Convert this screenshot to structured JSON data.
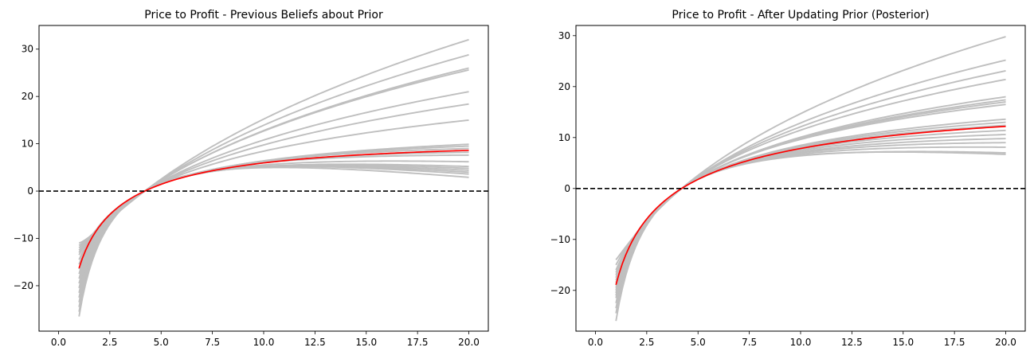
{
  "chart_data": [
    {
      "type": "line",
      "title": "Price to Profit - Previous Beliefs about Prior",
      "xlabel": "",
      "ylabel": "",
      "xlim": [
        -0.95,
        20.95
      ],
      "ylim": [
        -29.6,
        35.0
      ],
      "xticks": [
        0.0,
        2.5,
        5.0,
        7.5,
        10.0,
        12.5,
        15.0,
        17.5,
        20.0
      ],
      "xtick_labels": [
        "0.0",
        "2.5",
        "5.0",
        "7.5",
        "10.0",
        "12.5",
        "15.0",
        "17.5",
        "20.0"
      ],
      "yticks": [
        -20,
        -10,
        0,
        10,
        20,
        30
      ],
      "ytick_labels": [
        "−20",
        "−10",
        "0",
        "10",
        "20",
        "30"
      ],
      "grid": false,
      "reference_line": {
        "y": 0,
        "style": "dashed",
        "color": "#000000"
      },
      "x_range": [
        1.0,
        20.0
      ],
      "sample_color": "#bfbfbf",
      "mean_color": "#ff0000",
      "sample_curves": [
        {
          "y_at_1": -11.0,
          "y_at_20": 32.0
        },
        {
          "y_at_1": -11.5,
          "y_at_20": 28.8
        },
        {
          "y_at_1": -12.0,
          "y_at_20": 26.0
        },
        {
          "y_at_1": -12.5,
          "y_at_20": 25.6
        },
        {
          "y_at_1": -13.0,
          "y_at_20": 21.0
        },
        {
          "y_at_1": -13.5,
          "y_at_20": 18.4
        },
        {
          "y_at_1": -14.5,
          "y_at_20": 15.0
        },
        {
          "y_at_1": -15.5,
          "y_at_20": 9.9
        },
        {
          "y_at_1": -16.5,
          "y_at_20": 9.5
        },
        {
          "y_at_1": -17.5,
          "y_at_20": 9.0
        },
        {
          "y_at_1": -18.5,
          "y_at_20": 8.2
        },
        {
          "y_at_1": -19.5,
          "y_at_20": 7.6
        },
        {
          "y_at_1": -20.5,
          "y_at_20": 6.2
        },
        {
          "y_at_1": -21.5,
          "y_at_20": 5.2
        },
        {
          "y_at_1": -22.5,
          "y_at_20": 4.8
        },
        {
          "y_at_1": -23.5,
          "y_at_20": 4.4
        },
        {
          "y_at_1": -24.5,
          "y_at_20": 4.0
        },
        {
          "y_at_1": -25.5,
          "y_at_20": 3.6
        },
        {
          "y_at_1": -26.5,
          "y_at_20": 2.9
        }
      ],
      "mean_curve": {
        "y_at_1": -16.3,
        "y_at_20": 8.6
      }
    },
    {
      "type": "line",
      "title": "Price to Profit - After Updating Prior (Posterior)",
      "xlabel": "",
      "ylabel": "",
      "xlim": [
        -0.95,
        20.95
      ],
      "ylim": [
        -28.0,
        32.0
      ],
      "xticks": [
        0.0,
        2.5,
        5.0,
        7.5,
        10.0,
        12.5,
        15.0,
        17.5,
        20.0
      ],
      "xtick_labels": [
        "0.0",
        "2.5",
        "5.0",
        "7.5",
        "10.0",
        "12.5",
        "15.0",
        "17.5",
        "20.0"
      ],
      "yticks": [
        -20,
        -10,
        0,
        10,
        20,
        30
      ],
      "ytick_labels": [
        "−20",
        "−10",
        "0",
        "10",
        "20",
        "30"
      ],
      "grid": false,
      "reference_line": {
        "y": 0,
        "style": "dashed",
        "color": "#000000"
      },
      "x_range": [
        1.0,
        20.0
      ],
      "sample_color": "#bfbfbf",
      "mean_color": "#ff0000",
      "sample_curves": [
        {
          "y_at_1": -14.0,
          "y_at_20": 29.8
        },
        {
          "y_at_1": -15.0,
          "y_at_20": 25.2
        },
        {
          "y_at_1": -16.0,
          "y_at_20": 23.1
        },
        {
          "y_at_1": -16.5,
          "y_at_20": 21.4
        },
        {
          "y_at_1": -17.0,
          "y_at_20": 18.0
        },
        {
          "y_at_1": -17.5,
          "y_at_20": 17.4
        },
        {
          "y_at_1": -18.0,
          "y_at_20": 17.0
        },
        {
          "y_at_1": -18.5,
          "y_at_20": 16.5
        },
        {
          "y_at_1": -19.0,
          "y_at_20": 13.6
        },
        {
          "y_at_1": -19.5,
          "y_at_20": 13.0
        },
        {
          "y_at_1": -20.0,
          "y_at_20": 12.4
        },
        {
          "y_at_1": -20.5,
          "y_at_20": 11.4
        },
        {
          "y_at_1": -21.0,
          "y_at_20": 10.6
        },
        {
          "y_at_1": -21.5,
          "y_at_20": 9.8
        },
        {
          "y_at_1": -22.5,
          "y_at_20": 9.0
        },
        {
          "y_at_1": -23.5,
          "y_at_20": 8.1
        },
        {
          "y_at_1": -24.5,
          "y_at_20": 7.0
        },
        {
          "y_at_1": -26.0,
          "y_at_20": 6.7
        }
      ],
      "mean_curve": {
        "y_at_1": -18.9,
        "y_at_20": 12.2
      }
    }
  ]
}
